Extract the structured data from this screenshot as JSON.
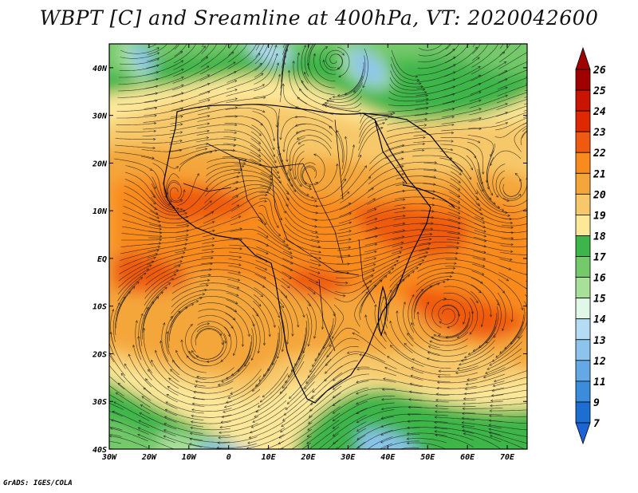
{
  "title": "WBPT [C] and Sreamline at 400hPa, VT: 2020042600",
  "credit": "GrADS: IGES/COLA",
  "axes": {
    "x_ticks": [
      "30W",
      "20W",
      "10W",
      "0",
      "10E",
      "20E",
      "30E",
      "40E",
      "50E",
      "60E",
      "70E"
    ],
    "y_ticks": [
      "40N",
      "30N",
      "20N",
      "10N",
      "EQ",
      "10S",
      "20S",
      "30S",
      "40S"
    ],
    "lon_range": [
      -30,
      75
    ],
    "lat_range": [
      -40,
      45
    ]
  },
  "colorbar": {
    "labels": [
      "26",
      "25",
      "24",
      "23",
      "22",
      "21",
      "20",
      "19",
      "18",
      "17",
      "16",
      "15",
      "14",
      "13",
      "12",
      "11",
      "9",
      "7"
    ],
    "colors": [
      "#a00000",
      "#c81400",
      "#e02800",
      "#ef5a10",
      "#f98a1e",
      "#f4a63a",
      "#f7c86a",
      "#fde89a",
      "#3db54a",
      "#74c96a",
      "#a8e09a",
      "#e0f8e8",
      "#b4dcf4",
      "#8cc4ee",
      "#64a8e6",
      "#3c8cdc",
      "#1c6ed2"
    ],
    "top_arrow_color": "#a00000",
    "bottom_arrow_color": "#1c64d6"
  }
}
